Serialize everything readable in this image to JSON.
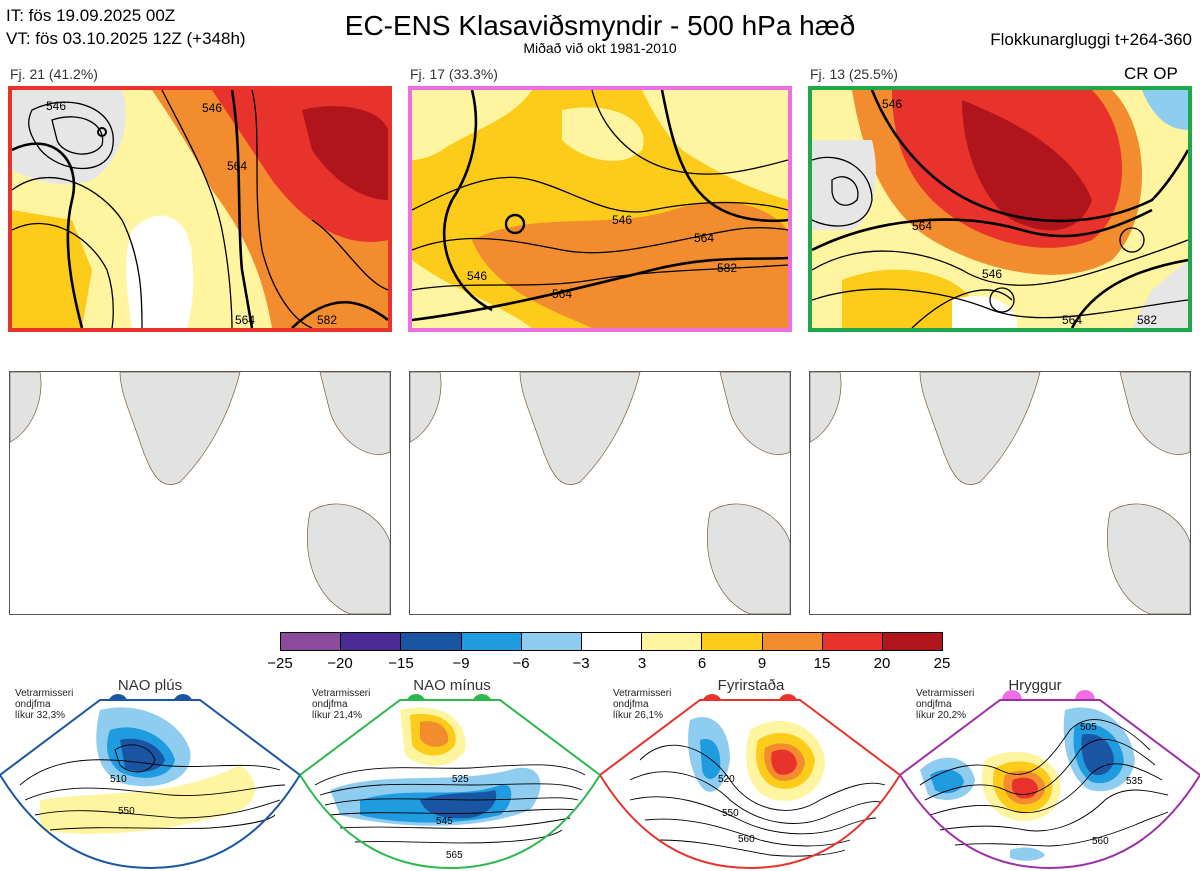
{
  "header": {
    "it": "IT: fös 19.09.2025 00Z",
    "vt": "VT: fös 03.10.2025 12Z  (+348h)",
    "title": "EC-ENS Klasaviðsmyndir - 500 hPa hæð",
    "subtitle": "Miðað við okt 1981-2010",
    "window": "Flokkunargluggi t+264-360"
  },
  "clusters": [
    {
      "label": "Fj. 21 (41.2%)",
      "frame_color": "#e8322c",
      "contours": [
        "546",
        "564",
        "546",
        "564",
        "582"
      ]
    },
    {
      "label": "Fj. 17 (33.3%)",
      "frame_color": "#ee6ee4",
      "contours": [
        "546",
        "564",
        "582",
        "546",
        "564"
      ]
    },
    {
      "label": "Fj. 13 (25.5%)",
      "frame_color": "#1fa84a",
      "contours": [
        "546",
        "564",
        "546",
        "564",
        "582"
      ],
      "tag": "CR OP"
    }
  ],
  "colorbar": {
    "colors": [
      "#8b4a9c",
      "#4b2c94",
      "#1a55a3",
      "#1f9be0",
      "#8fcdf0",
      "#ffffff",
      "#fff5a0",
      "#fdcc1a",
      "#f28c2e",
      "#e8322c",
      "#b0151b"
    ],
    "ticks": [
      "−25",
      "−20",
      "−15",
      "−9",
      "−6",
      "−3",
      "3",
      "6",
      "9",
      "15",
      "20",
      "25"
    ]
  },
  "regimes": [
    {
      "name": "NAO plús",
      "info": [
        "Vetrarmisseri",
        "ondjfma",
        "líkur 32,3%"
      ],
      "color": "#1a55a3",
      "values": [
        "510",
        "550"
      ]
    },
    {
      "name": "NAO mínus",
      "info": [
        "Vetrarmisseri",
        "ondjfma",
        "líkur 21,4%"
      ],
      "color": "#2db84d",
      "values": [
        "525",
        "545",
        "565"
      ]
    },
    {
      "name": "Fyrirstaða",
      "info": [
        "Vetrarmisseri",
        "ondjfma",
        "líkur 26,1%"
      ],
      "color": "#e8322c",
      "values": [
        "520",
        "550",
        "560"
      ]
    },
    {
      "name": "Hryggur",
      "info": [
        "Vetrarmisseri",
        "ondjfma",
        "líkur 20,2%"
      ],
      "color": "#ee6ee4",
      "values": [
        "505",
        "535",
        "560"
      ]
    }
  ]
}
